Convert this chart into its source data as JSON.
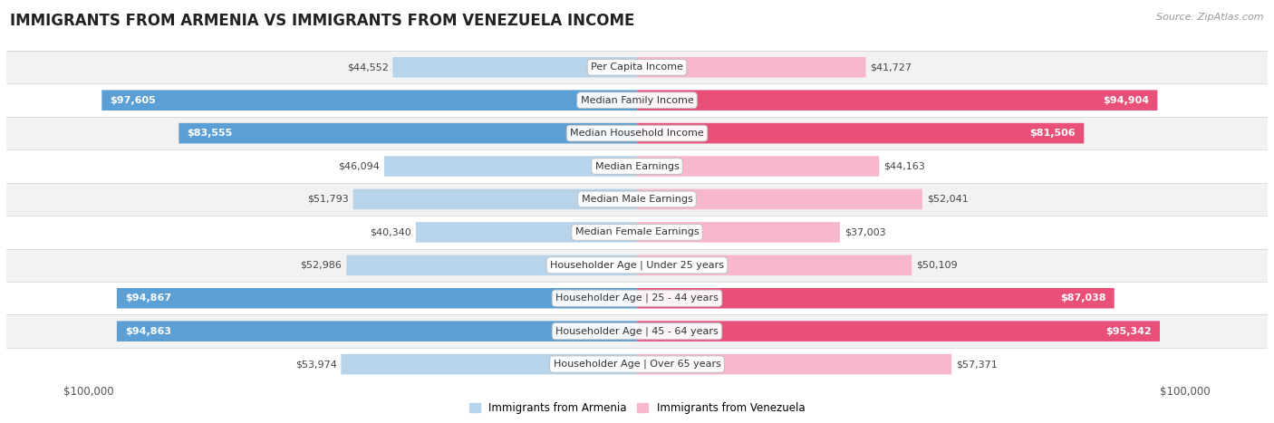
{
  "title": "IMMIGRANTS FROM ARMENIA VS IMMIGRANTS FROM VENEZUELA INCOME",
  "source": "Source: ZipAtlas.com",
  "categories": [
    "Per Capita Income",
    "Median Family Income",
    "Median Household Income",
    "Median Earnings",
    "Median Male Earnings",
    "Median Female Earnings",
    "Householder Age | Under 25 years",
    "Householder Age | 25 - 44 years",
    "Householder Age | 45 - 64 years",
    "Householder Age | Over 65 years"
  ],
  "armenia_values": [
    44552,
    97605,
    83555,
    46094,
    51793,
    40340,
    52986,
    94867,
    94863,
    53974
  ],
  "venezuela_values": [
    41727,
    94904,
    81506,
    44163,
    52041,
    37003,
    50109,
    87038,
    95342,
    57371
  ],
  "armenia_labels": [
    "$44,552",
    "$97,605",
    "$83,555",
    "$46,094",
    "$51,793",
    "$40,340",
    "$52,986",
    "$94,867",
    "$94,863",
    "$53,974"
  ],
  "venezuela_labels": [
    "$41,727",
    "$94,904",
    "$81,506",
    "$44,163",
    "$52,041",
    "$37,003",
    "$50,109",
    "$87,038",
    "$95,342",
    "$57,371"
  ],
  "armenia_color_light": "#b8d4ea",
  "armenia_color_dark": "#5b9fd4",
  "venezuela_color_light": "#f7b8cc",
  "venezuela_color_dark": "#e8507a",
  "max_value": 100000,
  "row_colors": [
    "#f2f2f2",
    "#ffffff",
    "#f2f2f2",
    "#ffffff",
    "#f2f2f2",
    "#ffffff",
    "#f2f2f2",
    "#ffffff",
    "#f2f2f2",
    "#ffffff"
  ],
  "title_fontsize": 12,
  "label_fontsize": 8,
  "category_fontsize": 8,
  "legend_fontsize": 8.5,
  "source_fontsize": 8,
  "inside_label_threshold": 0.8
}
